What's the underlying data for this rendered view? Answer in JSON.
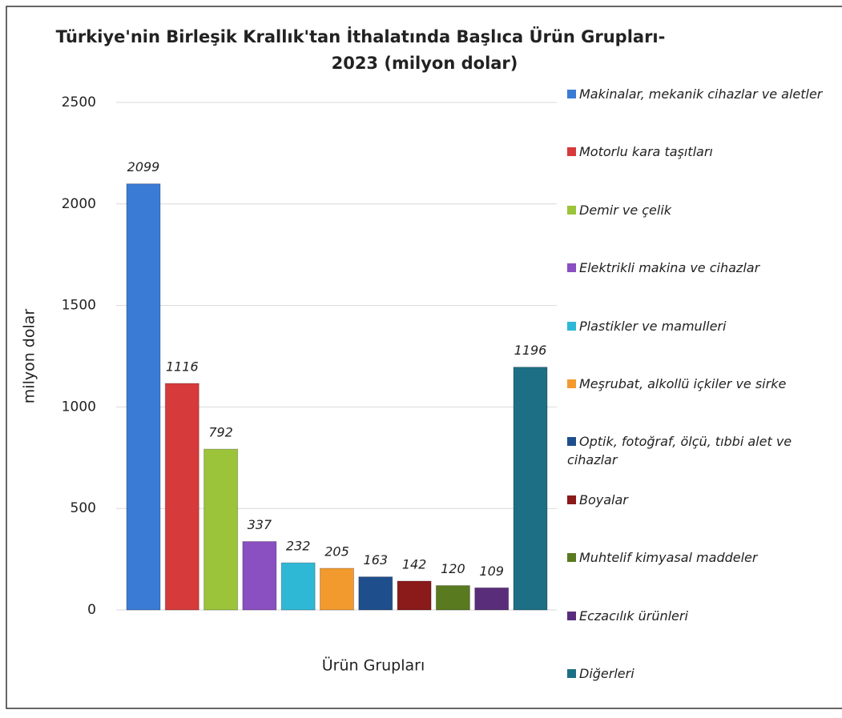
{
  "chart_data": {
    "type": "bar",
    "title": [
      "Türkiye'nin Birleşik Krallık'tan İthalatında Başlıca Ürün Grupları-",
      "2023 (milyon dolar)"
    ],
    "ylabel": "milyon dolar",
    "xlabel": "Ürün Grupları",
    "ylim": [
      0,
      2500
    ],
    "yticks": [
      0,
      500,
      1000,
      1500,
      2000,
      2500
    ],
    "grid": true,
    "legend": "right",
    "series": [
      {
        "name": "Makinalar, mekanik cihazlar ve aletler",
        "color": "#3a7bd5",
        "values": [
          2099
        ]
      },
      {
        "name": "Motorlu kara taşıtları",
        "color": "#d63a3a",
        "values": [
          1116
        ]
      },
      {
        "name": "Demir ve çelik",
        "color": "#9bc43a",
        "values": [
          792
        ]
      },
      {
        "name": "Elektrikli makina ve cihazlar",
        "color": "#8a4fc0",
        "values": [
          337
        ]
      },
      {
        "name": "Plastikler ve mamulleri",
        "color": "#2eb8d6",
        "values": [
          232
        ]
      },
      {
        "name": "Meşrubat, alkollü içkiler ve sirke",
        "color": "#f29a2e",
        "values": [
          205
        ]
      },
      {
        "name": "Optik, fotoğraf, ölçü, tıbbi alet ve cihazlar",
        "color": "#1f4e8c",
        "values": [
          163
        ]
      },
      {
        "name": "Boyalar",
        "color": "#8b1a1a",
        "values": [
          142
        ]
      },
      {
        "name": "Muhtelif kimyasal maddeler",
        "color": "#5a7a1f",
        "values": [
          120
        ]
      },
      {
        "name": "Eczacılık ürünleri",
        "color": "#5a2d7a",
        "values": [
          109
        ]
      },
      {
        "name": "Diğerleri",
        "color": "#1d6f85",
        "values": [
          1196
        ]
      }
    ]
  }
}
